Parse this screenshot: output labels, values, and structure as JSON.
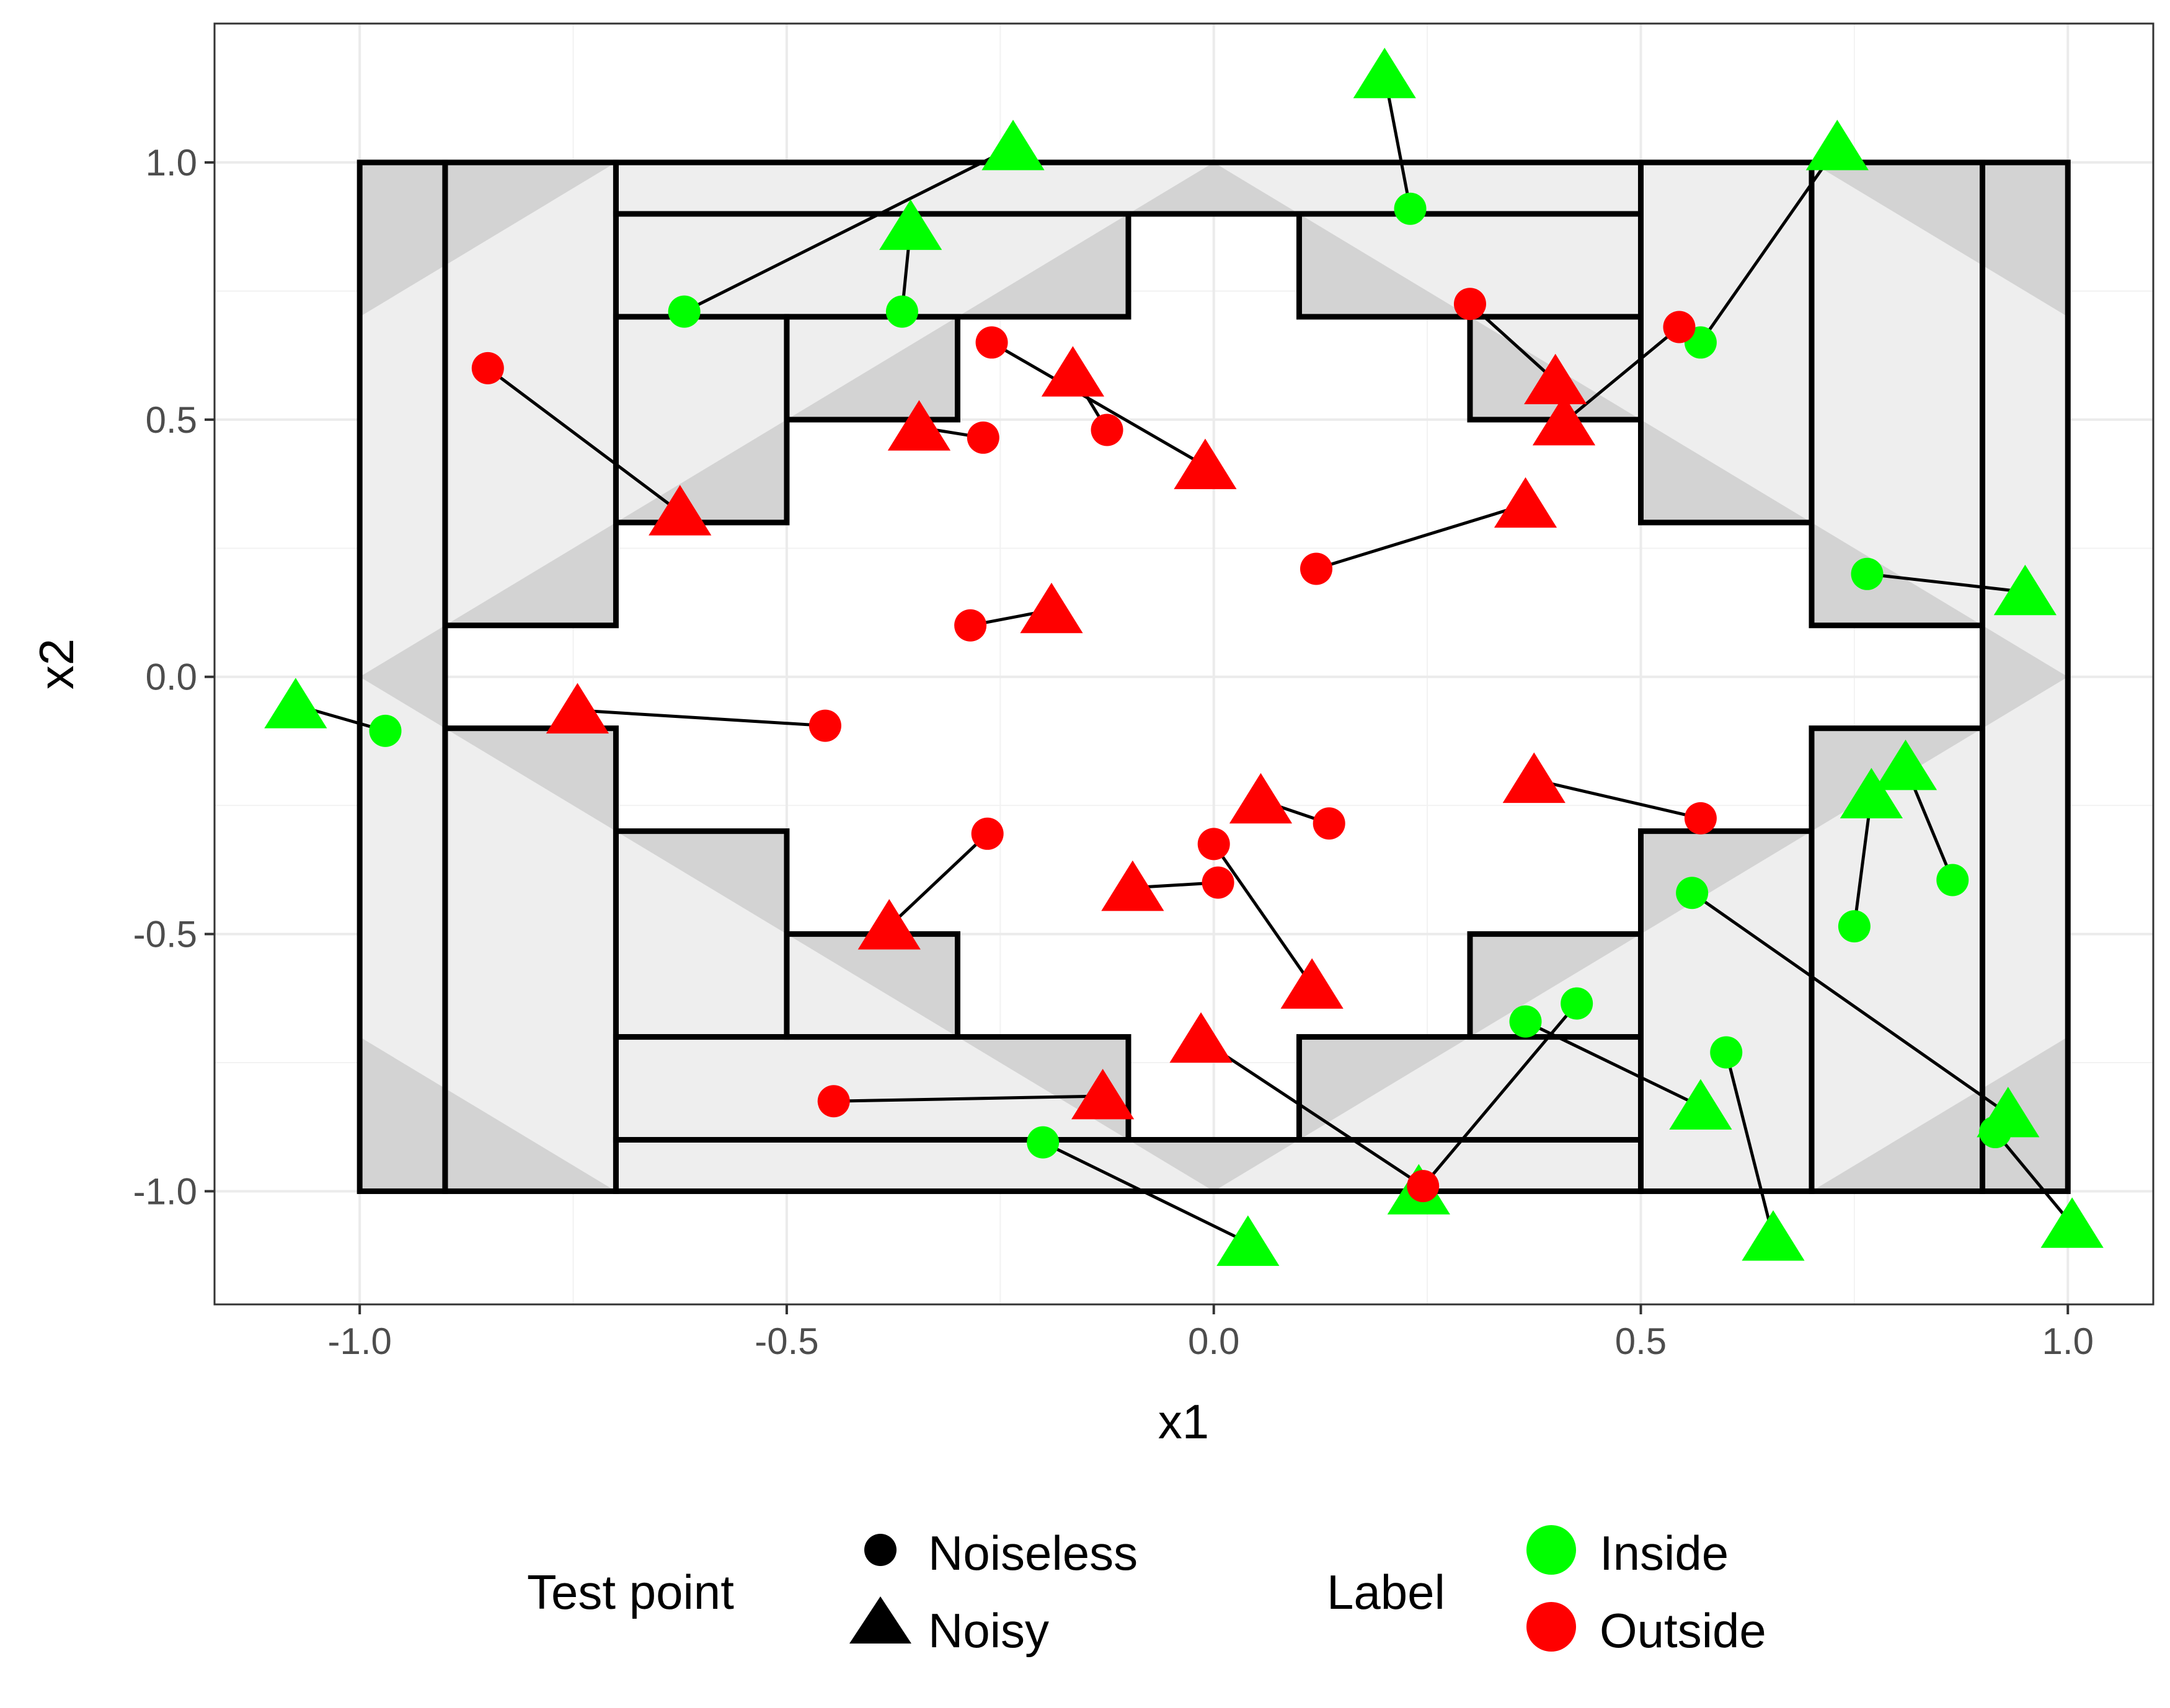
{
  "chart_data": {
    "type": "scatter",
    "xlabel": "x1",
    "ylabel": "x2",
    "xlim": [
      -1.17,
      1.1
    ],
    "ylim": [
      -1.22,
      1.27
    ],
    "x_ticks": [
      -1.0,
      -0.5,
      0.0,
      0.5,
      1.0
    ],
    "y_ticks": [
      -1.0,
      -0.5,
      0.0,
      0.5,
      1.0
    ],
    "x_tick_labels": [
      "-1.0",
      "-0.5",
      "0.0",
      "0.5",
      "1.0"
    ],
    "y_tick_labels": [
      "-1.0",
      "-0.5",
      "0.0",
      "0.5",
      "1.0"
    ],
    "grid": true,
    "legends": [
      {
        "title": "Test point",
        "items": [
          {
            "label": "Noiseless",
            "shape": "circle"
          },
          {
            "label": "Noisy",
            "shape": "triangle"
          }
        ]
      },
      {
        "title": "Label",
        "items": [
          {
            "label": "Inside",
            "color": "#00ff00"
          },
          {
            "label": "Outside",
            "color": "#ff0000"
          }
        ]
      }
    ],
    "legend_position": "bottom",
    "colors": {
      "Inside": "#00ff00",
      "Outside": "#ff0000",
      "region_fill": "#d3d3d3",
      "region_light": "#eeeeee",
      "outline": "#000000"
    },
    "rectangles": [
      [
        -1.0,
        -0.9,
        -1.0,
        1.0
      ],
      [
        -0.9,
        -0.7,
        -1.0,
        -0.1
      ],
      [
        -0.9,
        -0.7,
        0.1,
        1.0
      ],
      [
        -0.7,
        0.5,
        0.9,
        1.0
      ],
      [
        -0.7,
        0.5,
        -1.0,
        -0.9
      ],
      [
        -0.7,
        -0.1,
        0.7,
        0.9
      ],
      [
        -0.7,
        -0.1,
        -0.9,
        -0.7
      ],
      [
        0.1,
        0.5,
        0.7,
        0.9
      ],
      [
        0.1,
        0.5,
        -0.9,
        -0.7
      ],
      [
        -0.7,
        -0.5,
        0.3,
        0.7
      ],
      [
        -0.7,
        -0.5,
        -0.7,
        -0.3
      ],
      [
        -0.5,
        -0.3,
        0.5,
        0.7
      ],
      [
        -0.5,
        -0.3,
        -0.7,
        -0.5
      ],
      [
        0.3,
        0.5,
        0.5,
        0.7
      ],
      [
        0.3,
        0.5,
        -0.7,
        -0.5
      ],
      [
        0.5,
        0.7,
        0.3,
        1.0
      ],
      [
        0.5,
        0.7,
        -1.0,
        -0.3
      ],
      [
        0.7,
        0.9,
        0.1,
        1.0
      ],
      [
        0.7,
        0.9,
        -1.0,
        -0.1
      ],
      [
        0.9,
        1.0,
        -1.0,
        1.0
      ]
    ],
    "pairs": [
      {
        "noiseless": [
          -0.62,
          0.71
        ],
        "noisy": [
          -0.235,
          1.03
        ],
        "label": "Inside"
      },
      {
        "noiseless": [
          -0.365,
          0.71
        ],
        "noisy": [
          -0.355,
          0.875
        ],
        "label": "Inside"
      },
      {
        "noiseless": [
          0.23,
          0.91
        ],
        "noisy": [
          0.2,
          1.17
        ],
        "label": "Inside"
      },
      {
        "noiseless": [
          0.57,
          0.65
        ],
        "noisy": [
          0.73,
          1.03
        ],
        "label": "Inside"
      },
      {
        "noiseless": [
          0.765,
          0.2
        ],
        "noisy": [
          0.95,
          0.165
        ],
        "label": "Inside"
      },
      {
        "noiseless": [
          -0.97,
          -0.105
        ],
        "noisy": [
          -1.075,
          -0.055
        ],
        "label": "Inside"
      },
      {
        "noiseless": [
          0.75,
          -0.485
        ],
        "noisy": [
          0.77,
          -0.23
        ],
        "label": "Inside"
      },
      {
        "noiseless": [
          0.865,
          -0.395
        ],
        "noisy": [
          0.81,
          -0.175
        ],
        "label": "Inside"
      },
      {
        "noiseless": [
          0.56,
          -0.42
        ],
        "noisy": [
          0.93,
          -0.85
        ],
        "label": "Inside"
      },
      {
        "noiseless": [
          0.365,
          -0.67
        ],
        "noisy": [
          0.57,
          -0.835
        ],
        "label": "Inside"
      },
      {
        "noiseless": [
          0.425,
          -0.635
        ],
        "noisy": [
          0.24,
          -1.0
        ],
        "label": "Inside"
      },
      {
        "noiseless": [
          0.6,
          -0.73
        ],
        "noisy": [
          0.655,
          -1.09
        ],
        "label": "Inside"
      },
      {
        "noiseless": [
          -0.2,
          -0.905
        ],
        "noisy": [
          0.04,
          -1.1
        ],
        "label": "Inside"
      },
      {
        "noiseless": [
          0.915,
          -0.885
        ],
        "noisy": [
          1.005,
          -1.065
        ],
        "label": "Inside"
      },
      {
        "noiseless": [
          -0.85,
          0.6
        ],
        "noisy": [
          -0.625,
          0.32
        ],
        "label": "Outside"
      },
      {
        "noiseless": [
          -0.27,
          0.465
        ],
        "noisy": [
          -0.345,
          0.485
        ],
        "label": "Outside"
      },
      {
        "noiseless": [
          -0.26,
          0.65
        ],
        "noisy": [
          -0.01,
          0.41
        ],
        "label": "Outside"
      },
      {
        "noiseless": [
          -0.125,
          0.48
        ],
        "noisy": [
          -0.165,
          0.59
        ],
        "label": "Outside"
      },
      {
        "noiseless": [
          0.3,
          0.725
        ],
        "noisy": [
          0.4,
          0.575
        ],
        "label": "Outside"
      },
      {
        "noiseless": [
          0.545,
          0.68
        ],
        "noisy": [
          0.41,
          0.495
        ],
        "label": "Outside"
      },
      {
        "noiseless": [
          0.12,
          0.21
        ],
        "noisy": [
          0.365,
          0.335
        ],
        "label": "Outside"
      },
      {
        "noiseless": [
          -0.285,
          0.1
        ],
        "noisy": [
          -0.19,
          0.13
        ],
        "label": "Outside"
      },
      {
        "noiseless": [
          -0.455,
          -0.095
        ],
        "noisy": [
          -0.745,
          -0.065
        ],
        "label": "Outside"
      },
      {
        "noiseless": [
          -0.265,
          -0.305
        ],
        "noisy": [
          -0.38,
          -0.485
        ],
        "label": "Outside"
      },
      {
        "noiseless": [
          0.135,
          -0.285
        ],
        "noisy": [
          0.055,
          -0.24
        ],
        "label": "Outside"
      },
      {
        "noiseless": [
          0.0,
          -0.325
        ],
        "noisy": [
          0.115,
          -0.6
        ],
        "label": "Outside"
      },
      {
        "noiseless": [
          0.005,
          -0.4
        ],
        "noisy": [
          -0.095,
          -0.41
        ],
        "label": "Outside"
      },
      {
        "noiseless": [
          0.57,
          -0.275
        ],
        "noisy": [
          0.375,
          -0.2
        ],
        "label": "Outside"
      },
      {
        "noiseless": [
          -0.445,
          -0.825
        ],
        "noisy": [
          -0.13,
          -0.815
        ],
        "label": "Outside"
      },
      {
        "noiseless": [
          0.245,
          -0.99
        ],
        "noisy": [
          -0.015,
          -0.705
        ],
        "label": "Outside"
      }
    ]
  }
}
